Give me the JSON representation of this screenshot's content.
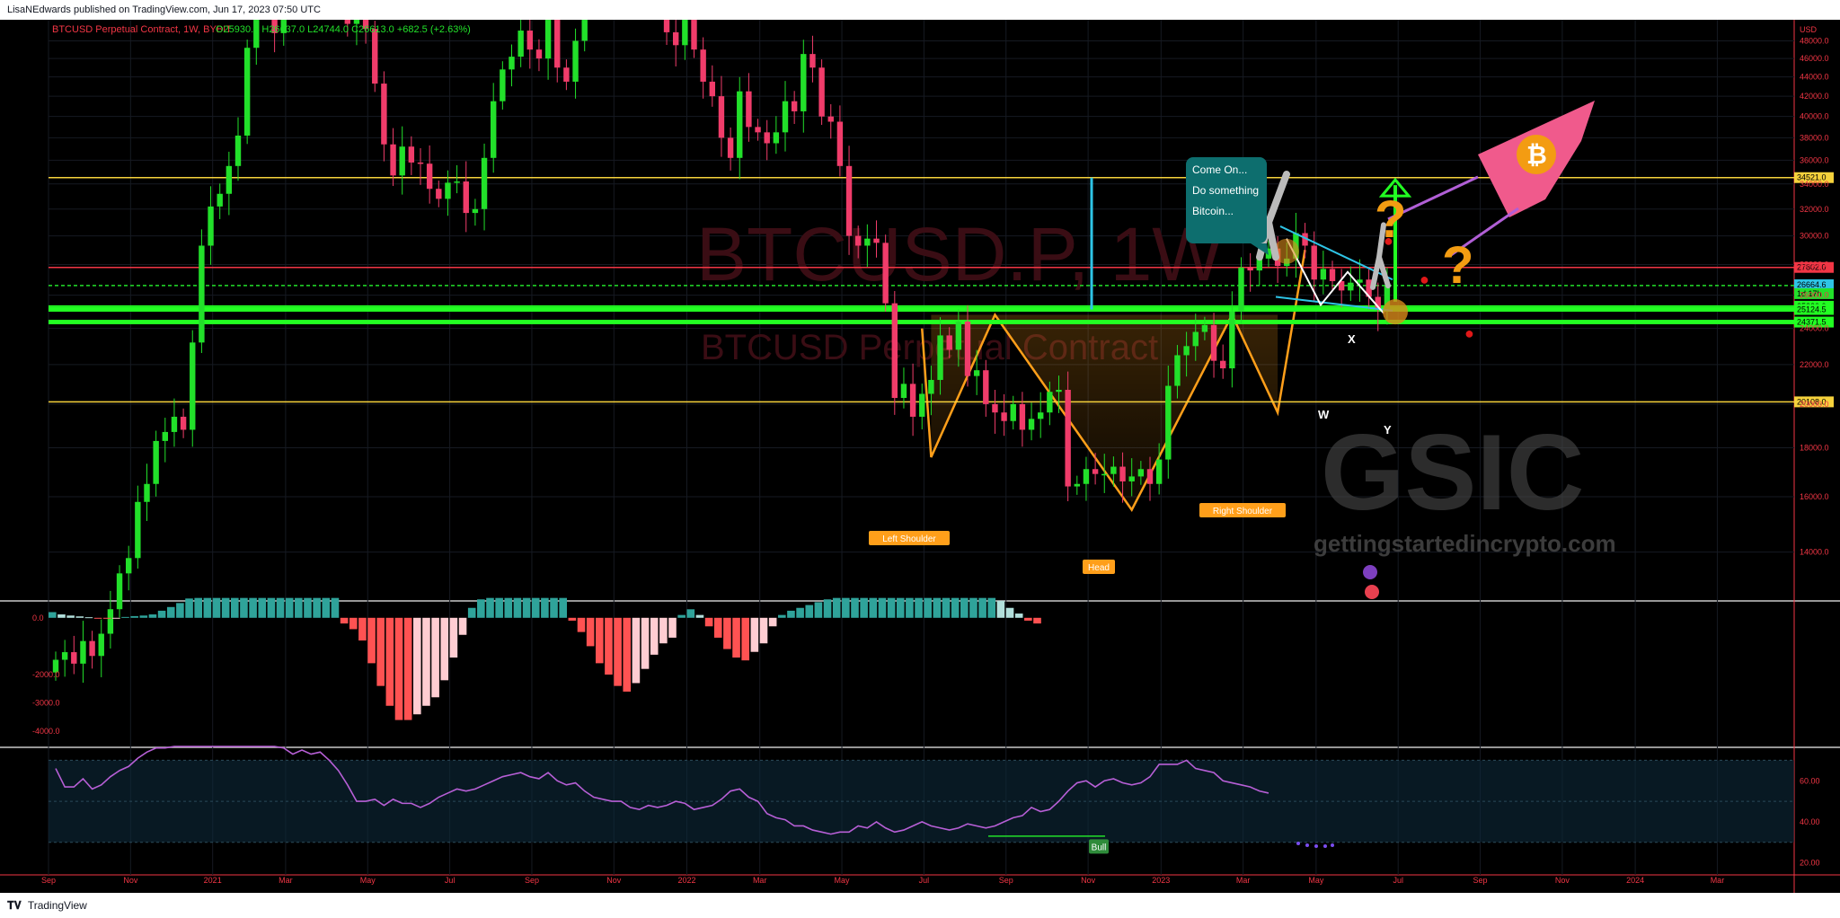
{
  "header": {
    "publish_text": "LisaNEdwards published on TradingView.com, Jun 17, 2023 07:50 UTC"
  },
  "footer": {
    "brand": "TradingView"
  },
  "colors": {
    "up": "#22e02a",
    "down": "#f03c6a",
    "bg": "#000000",
    "yellow": "#f6d23c",
    "green_band": "#22ff22",
    "pattern": "#ff9f1a",
    "cyan": "#2ec4e6",
    "teal": "#2fa39a",
    "rsi": "#b75fd6",
    "hist_up_pale": "#b2dfdb",
    "hist_dn_pale": "#ffcdd2",
    "hist_dn": "#ff5252"
  },
  "legend": {
    "symbol": "BTCUSD Perpetual Contract, 1W, BYBIT",
    "ohlc": "O25930.5 H26637.0 L24744.0 C26613.0 +682.5 (+2.63%)"
  },
  "watermark": {
    "line1": "BTCUSD.P, 1W",
    "line2": "BTCUSD Perpetual Contract"
  },
  "annotations": {
    "speech": [
      "Come On...",
      "Do something",
      "Bitcoin..."
    ],
    "left_shoulder": "Left Shoulder",
    "head": "Head",
    "right_shoulder": "Right Shoulder",
    "bull": "Bull",
    "w": "W",
    "x": "X",
    "y": "Y",
    "logo": "GSIC",
    "site": "gettingstartedincrypto.com",
    "currency": "USD"
  },
  "chart_data": [
    {
      "type": "candlestick",
      "title": "BTCUSD Perpetual Contract, 1W, BYBIT",
      "ylim": [
        12500,
        50500
      ],
      "yscale": "log",
      "y_ticks": [
        14000,
        16000,
        18000,
        20000,
        22000,
        24000,
        26000,
        28000,
        30000,
        32000,
        34000,
        36000,
        38000,
        40000,
        42000,
        44000,
        46000,
        48000
      ],
      "y_tick_labels": [
        "14000.0",
        "16000.0",
        "18000.0",
        "20000.0",
        "22000.0",
        "24000.0",
        "26000.0",
        "28000.0",
        "30000.0",
        "32000.0",
        "34000.0",
        "36000.0",
        "38000.0",
        "40000.0",
        "42000.0",
        "44000.0",
        "46000.0",
        "48000.0"
      ],
      "x_labels": [
        "Sep",
        "Nov",
        "2021",
        "Mar",
        "May",
        "Jul",
        "Sep",
        "Nov",
        "2022",
        "Mar",
        "May",
        "Jul",
        "Sep",
        "Nov",
        "2023",
        "Mar",
        "May",
        "Jul",
        "Sep",
        "Nov",
        "2024",
        "Mar"
      ],
      "x_label_weeks": [
        0,
        9,
        18,
        26,
        35,
        44,
        53,
        62,
        70,
        78,
        87,
        96,
        105,
        114,
        122,
        131,
        139,
        148,
        157,
        166,
        174,
        183
      ],
      "close_series": [
        10800,
        11000,
        10700,
        11300,
        10900,
        11500,
        12200,
        13300,
        13800,
        15800,
        16500,
        18300,
        18700,
        19400,
        18800,
        23200,
        29300,
        32200,
        33200,
        35500,
        38200,
        47200,
        57100,
        52000,
        48900,
        56200,
        58900,
        59600,
        57800,
        56500,
        63500,
        54000,
        50000,
        56500,
        49400,
        43300,
        37400,
        34700,
        37200,
        35800,
        35700,
        33600,
        32800,
        34100,
        34200,
        31700,
        32000,
        36200,
        41500,
        44800,
        46200,
        49200,
        47000,
        46000,
        51500,
        45000,
        43500,
        48000,
        55000,
        61500,
        62000,
        60500,
        65900,
        63000,
        59000,
        57000,
        56500,
        49000,
        47500,
        50500,
        47000,
        43500,
        42000,
        38000,
        36200,
        42500,
        39000,
        38500,
        37500,
        38500,
        41500,
        40500,
        46500,
        45000,
        40000,
        39500,
        35500,
        30000,
        29300,
        29800,
        29500,
        25500,
        20300,
        21000,
        19400,
        20500,
        21200,
        23600,
        22800,
        24400,
        21400,
        21700,
        20000,
        19600,
        19200,
        20000,
        18800,
        19300,
        19600,
        20600,
        20700,
        16400,
        16500,
        17100,
        16900,
        16900,
        17200,
        16600,
        16800,
        17100,
        16500,
        17500,
        20900,
        22500,
        23000,
        23800,
        24200,
        22200,
        21800,
        25000,
        27800,
        27600,
        28400,
        29100,
        27900,
        28400,
        30200,
        29300,
        27000,
        27700,
        26900,
        26300,
        26800,
        27000,
        25900,
        25100,
        26600
      ],
      "pattern_points": [
        {
          "label": "Left Shoulder",
          "week": 96,
          "price": 17600
        },
        {
          "label": "neckline",
          "week": 103,
          "price": 24800
        },
        {
          "label": "Head",
          "week": 118,
          "price": 15500
        },
        {
          "label": "neckline",
          "week": 129,
          "price": 24800
        },
        {
          "label": "Right Shoulder",
          "week": 134,
          "price": 19600
        },
        {
          "label": "breakout",
          "week": 137,
          "price": 29000
        }
      ],
      "horizontal_levels": [
        {
          "price": 34521.0,
          "label": "34521.0",
          "color": "#f6d23c"
        },
        {
          "price": 27802.0,
          "label": "27802.0",
          "color": "#f23645"
        },
        {
          "price": 26613.0,
          "label": "26613.0",
          "color": "#22e02a"
        },
        {
          "price": 25320.0,
          "label": "25320.0",
          "color": "#22ff22"
        },
        {
          "price": 25124.5,
          "label": "25124.5",
          "color": "#22ff22"
        },
        {
          "price": 24371.5,
          "label": "24371.5",
          "color": "#22ff22"
        },
        {
          "price": 20108.0,
          "label": "20108.0",
          "color": "#f6d23c"
        }
      ],
      "price_tags": [
        "34521.0",
        "27802.0",
        "26664.6",
        "26613.0",
        "1d 17h",
        "25320.0",
        "25124.5",
        "24371.5",
        "20108.0"
      ],
      "grid": true
    },
    {
      "type": "bar",
      "name": "momentum histogram",
      "ylim": [
        -4500,
        500
      ],
      "y_tick_labels": [
        "0.0",
        "-2000.0",
        "-3000.0",
        "-4000.0"
      ],
      "y_ticks": [
        0,
        -2000,
        -3000,
        -4000
      ],
      "values": [
        200,
        120,
        80,
        50,
        20,
        -20,
        -30,
        -10,
        30,
        60,
        80,
        120,
        250,
        380,
        520,
        680,
        700,
        700,
        700,
        700,
        700,
        700,
        700,
        700,
        700,
        700,
        700,
        700,
        700,
        700,
        700,
        700,
        -200,
        -400,
        -800,
        -1600,
        -2400,
        -3100,
        -3600,
        -3600,
        -3400,
        -3100,
        -2800,
        -2200,
        -1400,
        -600,
        350,
        650,
        700,
        700,
        700,
        700,
        700,
        700,
        700,
        700,
        700,
        -100,
        -500,
        -1000,
        -1600,
        -2000,
        -2400,
        -2600,
        -2300,
        -1800,
        -1300,
        -900,
        -700,
        100,
        300,
        100,
        -300,
        -700,
        -1100,
        -1400,
        -1500,
        -1200,
        -900,
        -300,
        100,
        250,
        350,
        450,
        550,
        650,
        700,
        700,
        700,
        700,
        700,
        700,
        700,
        700,
        700,
        700,
        700,
        700,
        700,
        700,
        700,
        700,
        700,
        700,
        600,
        350,
        150,
        -100,
        -200
      ]
    },
    {
      "type": "line",
      "name": "RSI",
      "ylim": [
        15,
        75
      ],
      "y_ticks": [
        20,
        40,
        60
      ],
      "y_tick_labels": [
        "20.00",
        "40.00",
        "60.00"
      ],
      "values": [
        66,
        57,
        57,
        61,
        56,
        58,
        62,
        65,
        67,
        71,
        74,
        76,
        76,
        77,
        78,
        77,
        79,
        80,
        79,
        77,
        78,
        82,
        78,
        80,
        77,
        76,
        73,
        75,
        73,
        74,
        70,
        65,
        58,
        50,
        50,
        51,
        48,
        51,
        49,
        49,
        47,
        49,
        52,
        54,
        56,
        55,
        56,
        58,
        60,
        62,
        63,
        64,
        62,
        61,
        64,
        60,
        58,
        59,
        55,
        52,
        51,
        50,
        50,
        47,
        46,
        48,
        47,
        48,
        50,
        49,
        46,
        47,
        48,
        51,
        55,
        56,
        52,
        50,
        44,
        42,
        41,
        38,
        38,
        36,
        35,
        34,
        35,
        35,
        38,
        37,
        40,
        37,
        35,
        36,
        38,
        40,
        38,
        37,
        36,
        37,
        39,
        38,
        37,
        38,
        40,
        42,
        43,
        47,
        45,
        46,
        50,
        55,
        59,
        60,
        57,
        60,
        61,
        59,
        58,
        59,
        62,
        68,
        68,
        68,
        70,
        66,
        65,
        64,
        60,
        59,
        58,
        57,
        55,
        54
      ],
      "bands": [
        30,
        50,
        70
      ],
      "grid": true
    }
  ]
}
